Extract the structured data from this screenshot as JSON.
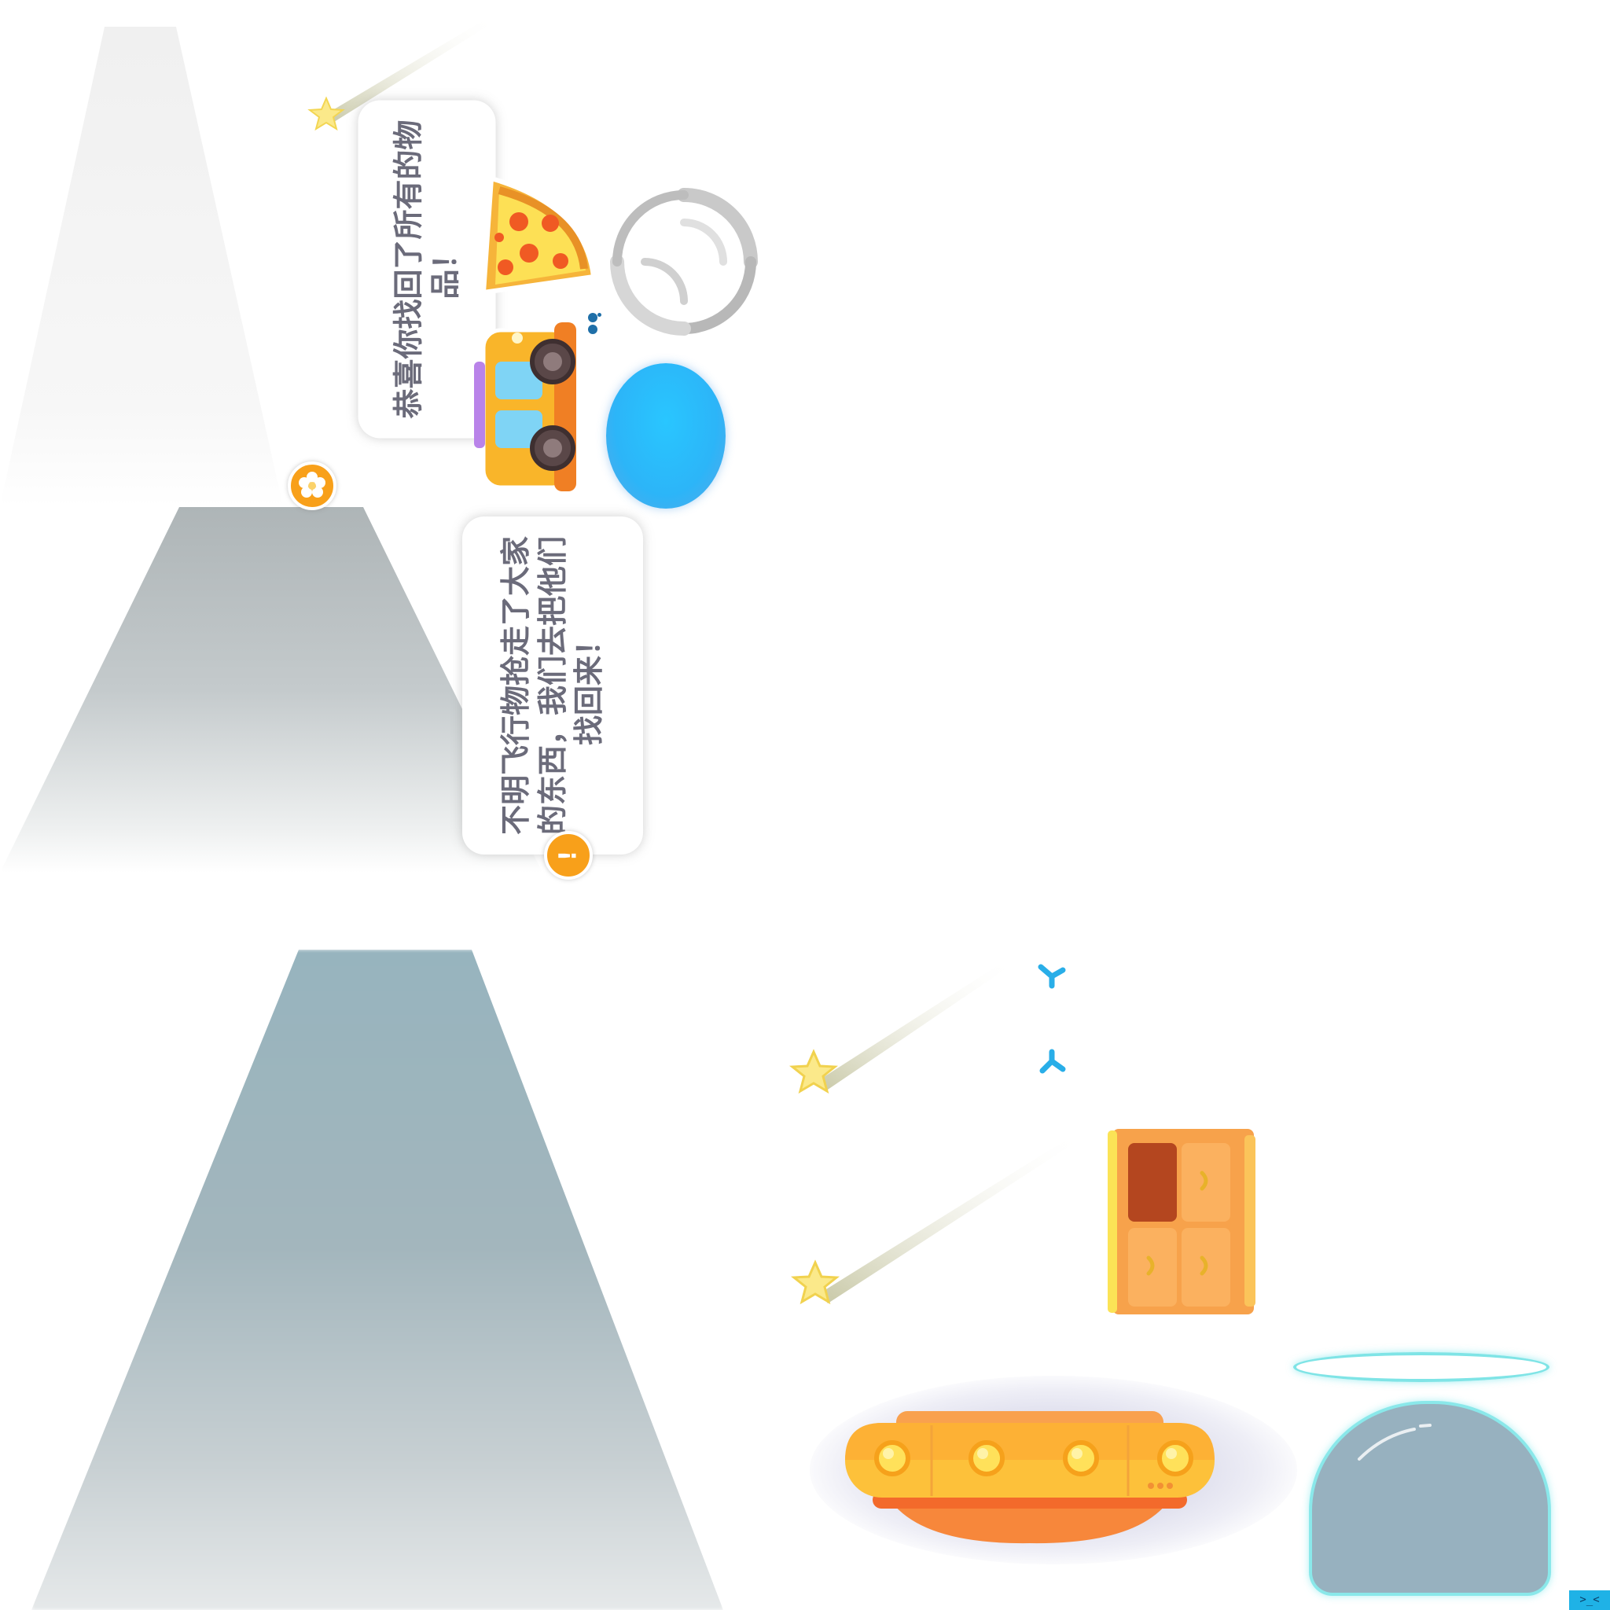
{
  "messages": {
    "success": "恭喜你找回了所有的物品！",
    "intro": "不明飞行物抢走了大家的东西，我们去把他们找回来！"
  },
  "badges": {
    "success_icon": "flower-icon",
    "intro_icon": "exclamation-icon",
    "intro_symbol": "!"
  },
  "sprites": [
    "shooting-star",
    "pizza-slice",
    "toy-car",
    "swirl-portal",
    "blue-oval",
    "cabinet",
    "ufo",
    "glass-dome",
    "halo-ring",
    "arrow-marker"
  ],
  "colors": {
    "accent_orange": "#f8a01a",
    "text_gray": "#6b6b7a",
    "blue": "#29c6ff",
    "cyan_glow": "#8ae8ea"
  },
  "corner_tag": ">_<"
}
